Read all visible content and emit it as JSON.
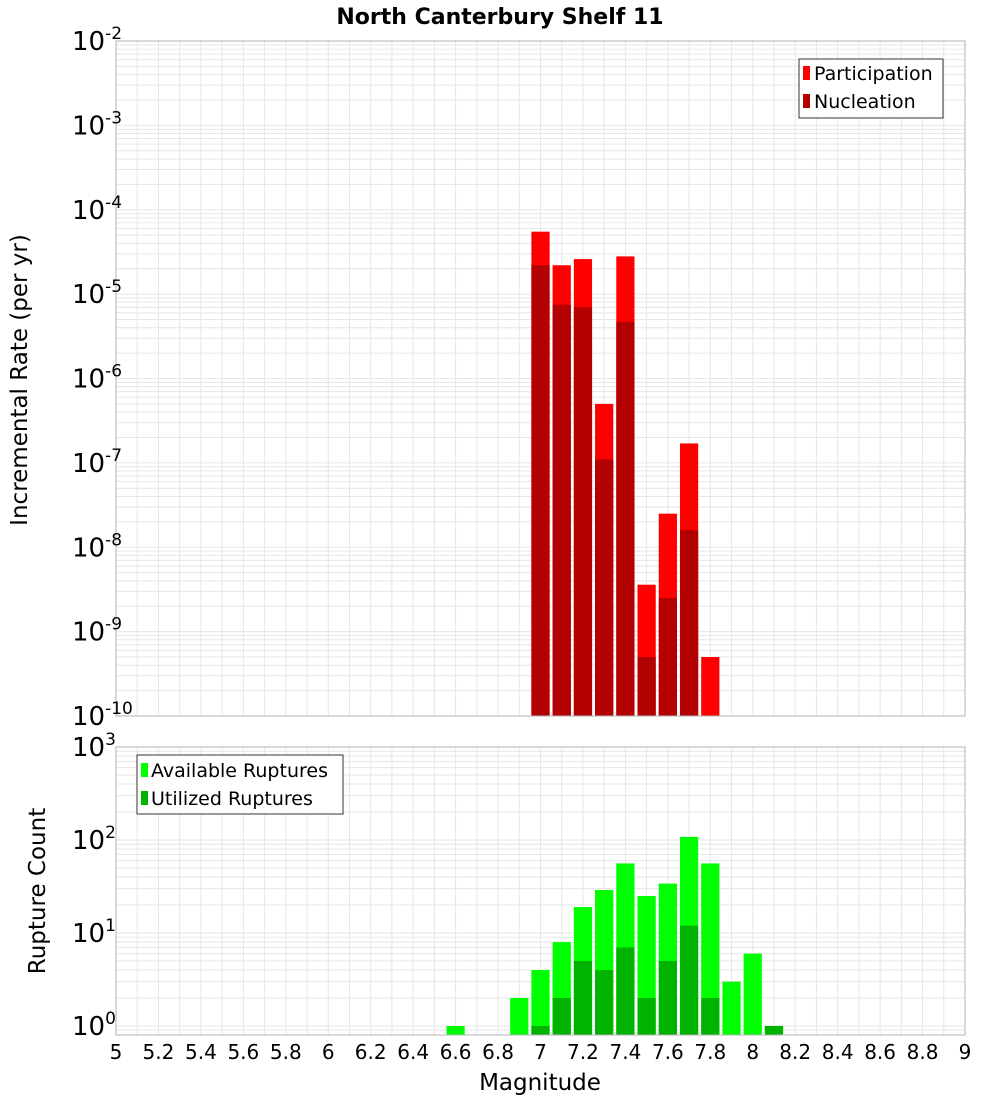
{
  "chart_data": [
    {
      "type": "bar",
      "title": "North Canterbury Shelf 11",
      "ylabel": "Incremental Rate (per yr)",
      "yscale": "log",
      "ylim": [
        1e-10,
        0.01
      ],
      "y_ticks": [
        "10",
        "10",
        "10",
        "10",
        "10",
        "10",
        "10",
        "10",
        "10"
      ],
      "y_tick_exponents": [
        "-10",
        "-9",
        "-8",
        "-7",
        "-6",
        "-5",
        "-4",
        "-3",
        "-2"
      ],
      "legend": {
        "position": "top-right",
        "items": [
          "Participation",
          "Nucleation"
        ]
      },
      "grid": true,
      "colors": {
        "Participation": "#ff0000",
        "Nucleation": "#b30000"
      },
      "x": [
        7.0,
        7.1,
        7.2,
        7.3,
        7.4,
        7.5,
        7.6,
        7.7,
        7.8
      ],
      "series": [
        {
          "name": "Participation",
          "values": [
            5.5e-05,
            2.2e-05,
            2.6e-05,
            5e-07,
            2.8e-05,
            3.6e-09,
            2.5e-08,
            1.7e-07,
            5e-10
          ]
        },
        {
          "name": "Nucleation",
          "values": [
            2.2e-05,
            7.5e-06,
            7e-06,
            1.1e-07,
            4.7e-06,
            5e-10,
            2.5e-09,
            1.6e-08,
            null
          ]
        }
      ]
    },
    {
      "type": "bar",
      "ylabel": "Rupture Count",
      "xlabel": "Magnitude",
      "yscale": "log",
      "ylim": [
        0.8,
        1000
      ],
      "y_ticks": [
        "10",
        "10",
        "10",
        "10"
      ],
      "y_tick_exponents": [
        "0",
        "1",
        "2",
        "3"
      ],
      "xlim": [
        5,
        9
      ],
      "x_ticks": [
        "5",
        "5.2",
        "5.4",
        "5.6",
        "5.8",
        "6",
        "6.2",
        "6.4",
        "6.6",
        "6.8",
        "7",
        "7.2",
        "7.4",
        "7.6",
        "7.8",
        "8",
        "8.2",
        "8.4",
        "8.6",
        "8.8",
        "9"
      ],
      "legend": {
        "position": "top-left",
        "items": [
          "Available Ruptures",
          "Utilized Ruptures"
        ]
      },
      "grid": true,
      "colors": {
        "Available Ruptures": "#00ff00",
        "Utilized Ruptures": "#00b300"
      },
      "x": [
        6.6,
        6.9,
        7.0,
        7.1,
        7.2,
        7.3,
        7.4,
        7.5,
        7.6,
        7.7,
        7.8,
        7.9,
        8.0,
        8.1
      ],
      "series": [
        {
          "name": "Available Ruptures",
          "values": [
            1,
            2,
            4,
            8,
            19,
            29,
            56,
            25,
            34,
            108,
            56,
            3,
            6,
            1
          ]
        },
        {
          "name": "Utilized Ruptures",
          "values": [
            null,
            null,
            1,
            2,
            5,
            4,
            7,
            2,
            5,
            12,
            2,
            null,
            null,
            1
          ]
        }
      ]
    }
  ]
}
